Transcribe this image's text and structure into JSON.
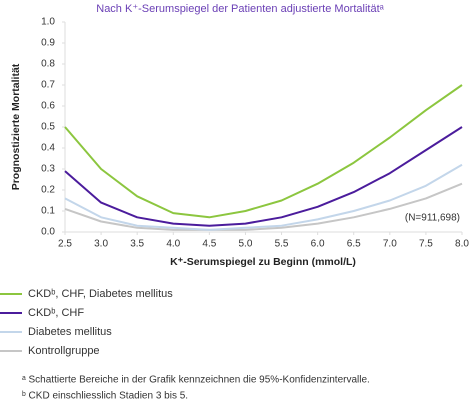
{
  "chart_data": {
    "type": "line",
    "title": "Nach K⁺-Serumspiegel der Patienten adjustierte Mortalitätᵃ",
    "y_label": "Prognostizierte Mortalität",
    "x_label": "K⁺-Serumspiegel zu Beginn (mmol/L)",
    "annotation": "(N=911,698)",
    "x": [
      2.5,
      3.0,
      3.5,
      4.0,
      4.5,
      5.0,
      5.5,
      6.0,
      6.5,
      7.0,
      7.5,
      8.0
    ],
    "series": [
      {
        "name": "CKDᵇ, CHF, Diabetes mellitus",
        "color": "#8cc63f",
        "values": [
          0.5,
          0.3,
          0.17,
          0.09,
          0.07,
          0.1,
          0.15,
          0.23,
          0.33,
          0.45,
          0.58,
          0.7
        ]
      },
      {
        "name": "CKDᵇ, CHF",
        "color": "#4b1c9c",
        "values": [
          0.29,
          0.14,
          0.07,
          0.04,
          0.03,
          0.04,
          0.07,
          0.12,
          0.19,
          0.28,
          0.39,
          0.5
        ]
      },
      {
        "name": "Diabetes mellitus",
        "color": "#c3d6ea",
        "values": [
          0.16,
          0.07,
          0.03,
          0.02,
          0.01,
          0.02,
          0.03,
          0.06,
          0.1,
          0.15,
          0.22,
          0.32
        ]
      },
      {
        "name": "Kontrollgruppe",
        "color": "#c6c6c6",
        "values": [
          0.11,
          0.05,
          0.02,
          0.01,
          0.01,
          0.01,
          0.02,
          0.04,
          0.07,
          0.11,
          0.16,
          0.23
        ]
      }
    ],
    "xlim": [
      2.5,
      8.0
    ],
    "xticks": [
      2.5,
      {
        "value": 3.0,
        "label": "3.0"
      },
      3.5,
      {
        "value": 4.0,
        "label": "4.0"
      },
      4.5,
      {
        "value": 5.0,
        "label": "5.0"
      },
      5.5,
      {
        "value": 6.0,
        "label": "6.0"
      },
      6.5,
      {
        "value": 7.0,
        "label": "7.0"
      },
      7.5,
      {
        "value": 8.0,
        "label": "8.0"
      }
    ],
    "ylim": [
      0,
      1
    ],
    "yticks": [
      {
        "value": 0,
        "label": "0.0"
      },
      0.1,
      0.2,
      0.3,
      0.4,
      0.5,
      0.6,
      0.7,
      0.8,
      0.9,
      {
        "value": 1,
        "label": "1.0"
      }
    ],
    "footnotes": [
      "ᵃ Schattierte Bereiche in der Grafik kennzeichnen die 95%-Konfidenzintervalle.",
      "ᵇ CKD einschliesslich Stadien 3 bis 5."
    ]
  }
}
